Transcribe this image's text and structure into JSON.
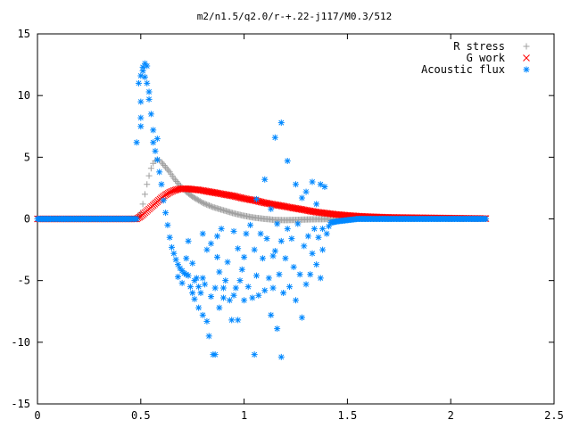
{
  "chart_data": {
    "type": "scatter",
    "title": "m2/n1.5/q2.0/r-+.22-j117/M0.3/512",
    "xlabel": "",
    "ylabel": "",
    "xlim": [
      0,
      2.5
    ],
    "ylim": [
      -15,
      15
    ],
    "xticks": [
      "0",
      "0.5",
      "1",
      "1.5",
      "2",
      "2.5"
    ],
    "yticks": [
      "15",
      "10",
      "5",
      "0",
      "-5",
      "-10",
      "-15"
    ],
    "grid": false,
    "legend_position": "top-right",
    "series": [
      {
        "name": "R stress",
        "marker": "+",
        "color": "#a0a0a0",
        "points": [
          [
            0.0,
            0
          ],
          [
            0.1,
            0
          ],
          [
            0.2,
            0
          ],
          [
            0.3,
            0
          ],
          [
            0.4,
            0
          ],
          [
            0.48,
            0
          ],
          [
            0.5,
            0.5
          ],
          [
            0.51,
            1.2
          ],
          [
            0.52,
            2.0
          ],
          [
            0.53,
            2.8
          ],
          [
            0.54,
            3.5
          ],
          [
            0.55,
            4.1
          ],
          [
            0.56,
            4.5
          ],
          [
            0.57,
            4.7
          ],
          [
            0.58,
            4.8
          ],
          [
            0.59,
            4.75
          ],
          [
            0.6,
            4.6
          ],
          [
            0.62,
            4.2
          ],
          [
            0.64,
            3.8
          ],
          [
            0.66,
            3.3
          ],
          [
            0.68,
            2.9
          ],
          [
            0.7,
            2.5
          ],
          [
            0.72,
            2.2
          ],
          [
            0.75,
            1.8
          ],
          [
            0.78,
            1.5
          ],
          [
            0.8,
            1.3
          ],
          [
            0.85,
            0.95
          ],
          [
            0.9,
            0.7
          ],
          [
            0.95,
            0.45
          ],
          [
            1.0,
            0.25
          ],
          [
            1.05,
            0.1
          ],
          [
            1.1,
            0.0
          ],
          [
            1.15,
            -0.08
          ],
          [
            1.2,
            -0.1
          ],
          [
            1.25,
            -0.08
          ],
          [
            1.3,
            -0.05
          ],
          [
            1.35,
            -0.03
          ],
          [
            1.4,
            -0.02
          ],
          [
            1.5,
            0
          ],
          [
            1.6,
            0
          ],
          [
            1.7,
            0
          ],
          [
            1.8,
            0
          ],
          [
            1.9,
            0
          ],
          [
            2.0,
            0
          ],
          [
            2.1,
            0
          ],
          [
            2.17,
            0
          ]
        ]
      },
      {
        "name": "G work",
        "marker": "x",
        "color": "#ff0000",
        "points": [
          [
            0.0,
            0
          ],
          [
            0.2,
            0
          ],
          [
            0.4,
            0
          ],
          [
            0.48,
            0
          ],
          [
            0.5,
            0.2
          ],
          [
            0.52,
            0.5
          ],
          [
            0.54,
            0.8
          ],
          [
            0.56,
            1.1
          ],
          [
            0.58,
            1.4
          ],
          [
            0.6,
            1.7
          ],
          [
            0.62,
            1.95
          ],
          [
            0.64,
            2.15
          ],
          [
            0.66,
            2.3
          ],
          [
            0.68,
            2.4
          ],
          [
            0.7,
            2.45
          ],
          [
            0.72,
            2.45
          ],
          [
            0.75,
            2.4
          ],
          [
            0.78,
            2.35
          ],
          [
            0.8,
            2.3
          ],
          [
            0.85,
            2.15
          ],
          [
            0.9,
            2.0
          ],
          [
            0.95,
            1.85
          ],
          [
            1.0,
            1.65
          ],
          [
            1.05,
            1.5
          ],
          [
            1.1,
            1.3
          ],
          [
            1.15,
            1.15
          ],
          [
            1.2,
            1.0
          ],
          [
            1.25,
            0.85
          ],
          [
            1.3,
            0.7
          ],
          [
            1.35,
            0.55
          ],
          [
            1.4,
            0.45
          ],
          [
            1.45,
            0.35
          ],
          [
            1.5,
            0.28
          ],
          [
            1.55,
            0.22
          ],
          [
            1.6,
            0.18
          ],
          [
            1.65,
            0.15
          ],
          [
            1.7,
            0.12
          ],
          [
            1.8,
            0.1
          ],
          [
            1.9,
            0.08
          ],
          [
            2.0,
            0.06
          ],
          [
            2.1,
            0.04
          ],
          [
            2.17,
            0.03
          ]
        ]
      },
      {
        "name": "Acoustic flux",
        "marker": "*",
        "color": "#0088ff",
        "points": [
          [
            0.0,
            0
          ],
          [
            0.05,
            0
          ],
          [
            0.1,
            0
          ],
          [
            0.15,
            0
          ],
          [
            0.2,
            0
          ],
          [
            0.25,
            0
          ],
          [
            0.3,
            0
          ],
          [
            0.35,
            0
          ],
          [
            0.4,
            0
          ],
          [
            0.45,
            0
          ],
          [
            0.48,
            0
          ],
          [
            0.48,
            6.2
          ],
          [
            0.49,
            11.0
          ],
          [
            0.5,
            11.6
          ],
          [
            0.5,
            9.5
          ],
          [
            0.5,
            8.2
          ],
          [
            0.5,
            7.5
          ],
          [
            0.51,
            12.3
          ],
          [
            0.51,
            12.0
          ],
          [
            0.52,
            12.6
          ],
          [
            0.52,
            11.5
          ],
          [
            0.53,
            12.4
          ],
          [
            0.53,
            11.0
          ],
          [
            0.54,
            10.3
          ],
          [
            0.54,
            9.7
          ],
          [
            0.55,
            8.5
          ],
          [
            0.56,
            7.2
          ],
          [
            0.56,
            6.2
          ],
          [
            0.57,
            5.5
          ],
          [
            0.58,
            4.8
          ],
          [
            0.58,
            6.5
          ],
          [
            0.59,
            3.8
          ],
          [
            0.6,
            2.8
          ],
          [
            0.61,
            1.5
          ],
          [
            0.62,
            0.5
          ],
          [
            0.63,
            -0.5
          ],
          [
            0.64,
            -1.5
          ],
          [
            0.65,
            -2.3
          ],
          [
            0.66,
            -2.8
          ],
          [
            0.67,
            -3.3
          ],
          [
            0.68,
            -3.7
          ],
          [
            0.69,
            -4.0
          ],
          [
            0.7,
            -4.2
          ],
          [
            0.71,
            -4.4
          ],
          [
            0.72,
            -4.5
          ],
          [
            0.68,
            -4.7
          ],
          [
            0.7,
            -5.2
          ],
          [
            0.73,
            -4.6
          ],
          [
            0.72,
            -3.2
          ],
          [
            0.73,
            -1.8
          ],
          [
            0.75,
            -3.6
          ],
          [
            0.74,
            -5.5
          ],
          [
            0.75,
            -6.0
          ],
          [
            0.76,
            -5.0
          ],
          [
            0.76,
            -6.5
          ],
          [
            0.77,
            -4.8
          ],
          [
            0.78,
            -5.5
          ],
          [
            0.78,
            -7.2
          ],
          [
            0.79,
            -6.0
          ],
          [
            0.8,
            -4.8
          ],
          [
            0.8,
            -7.8
          ],
          [
            0.8,
            -1.2
          ],
          [
            0.81,
            -5.3
          ],
          [
            0.82,
            -8.3
          ],
          [
            0.82,
            -2.5
          ],
          [
            0.83,
            -9.5
          ],
          [
            0.84,
            -6.3
          ],
          [
            0.84,
            -2.0
          ],
          [
            0.85,
            -11.0
          ],
          [
            0.86,
            -11.0
          ],
          [
            0.86,
            -5.6
          ],
          [
            0.87,
            -1.4
          ],
          [
            0.87,
            -3.1
          ],
          [
            0.88,
            -4.3
          ],
          [
            0.88,
            -7.2
          ],
          [
            0.89,
            -0.8
          ],
          [
            0.9,
            -5.6
          ],
          [
            0.9,
            -6.4
          ],
          [
            0.91,
            -5.0
          ],
          [
            0.92,
            -3.5
          ],
          [
            0.93,
            -6.6
          ],
          [
            0.94,
            -8.2
          ],
          [
            0.95,
            -6.2
          ],
          [
            0.95,
            -1.0
          ],
          [
            0.96,
            -5.6
          ],
          [
            0.97,
            -8.2
          ],
          [
            0.97,
            -2.4
          ],
          [
            0.98,
            -5.0
          ],
          [
            0.99,
            -4.1
          ],
          [
            1.0,
            -6.6
          ],
          [
            1.0,
            -3.1
          ],
          [
            1.01,
            -1.2
          ],
          [
            1.02,
            -5.5
          ],
          [
            1.03,
            -0.5
          ],
          [
            1.04,
            -6.4
          ],
          [
            1.05,
            -2.5
          ],
          [
            1.05,
            -11.0
          ],
          [
            1.06,
            -4.6
          ],
          [
            1.06,
            1.6
          ],
          [
            1.07,
            -6.2
          ],
          [
            1.08,
            -1.2
          ],
          [
            1.09,
            -3.2
          ],
          [
            1.1,
            -5.8
          ],
          [
            1.1,
            3.2
          ],
          [
            1.11,
            -1.6
          ],
          [
            1.12,
            -4.8
          ],
          [
            1.13,
            -7.8
          ],
          [
            1.13,
            0.8
          ],
          [
            1.14,
            -3.0
          ],
          [
            1.14,
            -5.6
          ],
          [
            1.15,
            6.6
          ],
          [
            1.15,
            -2.6
          ],
          [
            1.16,
            -8.9
          ],
          [
            1.16,
            -0.4
          ],
          [
            1.17,
            -4.5
          ],
          [
            1.18,
            7.8
          ],
          [
            1.18,
            -11.2
          ],
          [
            1.18,
            -1.8
          ],
          [
            1.19,
            -6.0
          ],
          [
            1.2,
            -3.2
          ],
          [
            1.21,
            4.7
          ],
          [
            1.21,
            -0.8
          ],
          [
            1.22,
            -5.5
          ],
          [
            1.23,
            -1.6
          ],
          [
            1.24,
            -3.9
          ],
          [
            1.25,
            -6.6
          ],
          [
            1.25,
            2.8
          ],
          [
            1.26,
            -0.4
          ],
          [
            1.27,
            -4.5
          ],
          [
            1.28,
            -8.0
          ],
          [
            1.28,
            1.7
          ],
          [
            1.29,
            -2.2
          ],
          [
            1.3,
            -5.3
          ],
          [
            1.3,
            2.2
          ],
          [
            1.31,
            -1.4
          ],
          [
            1.32,
            -4.5
          ],
          [
            1.33,
            -2.8
          ],
          [
            1.33,
            3.0
          ],
          [
            1.34,
            -0.8
          ],
          [
            1.35,
            -3.7
          ],
          [
            1.35,
            1.2
          ],
          [
            1.36,
            -1.5
          ],
          [
            1.37,
            -4.8
          ],
          [
            1.37,
            2.8
          ],
          [
            1.38,
            -0.8
          ],
          [
            1.38,
            -2.5
          ],
          [
            1.39,
            2.6
          ],
          [
            1.4,
            -1.2
          ],
          [
            1.41,
            -0.6
          ],
          [
            1.42,
            -0.3
          ],
          [
            1.45,
            -0.2
          ],
          [
            1.5,
            -0.1
          ],
          [
            1.55,
            0
          ],
          [
            1.6,
            0
          ],
          [
            1.65,
            0
          ],
          [
            1.7,
            0
          ],
          [
            1.75,
            0
          ],
          [
            1.8,
            0
          ],
          [
            1.85,
            0
          ],
          [
            1.9,
            0
          ],
          [
            1.95,
            0
          ],
          [
            2.0,
            0
          ],
          [
            2.05,
            0
          ],
          [
            2.1,
            0
          ],
          [
            2.15,
            0
          ],
          [
            2.17,
            0
          ]
        ]
      }
    ]
  }
}
